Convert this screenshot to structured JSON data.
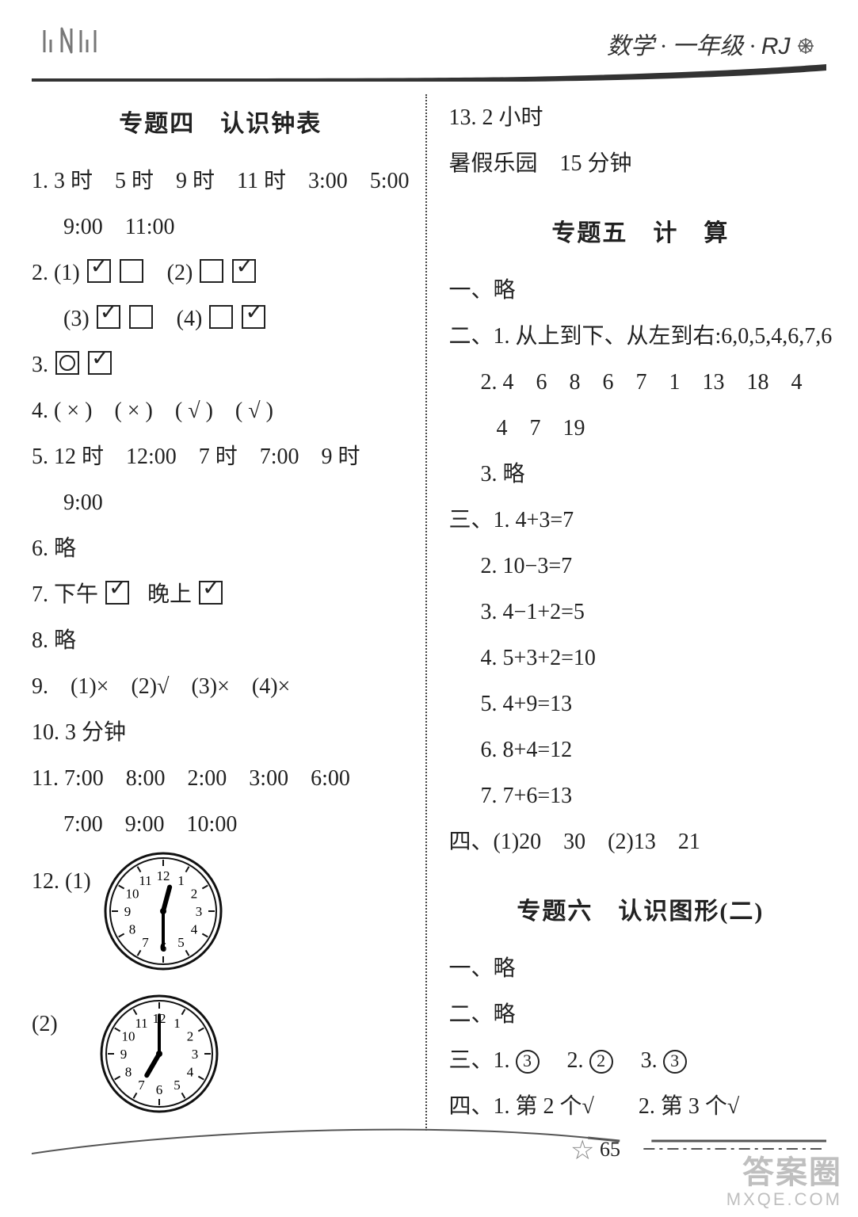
{
  "header": {
    "left_logo": "",
    "right": "数学 · 一年级 · ",
    "rj": "RJ"
  },
  "left_col": {
    "title": "专题四　认识钟表",
    "q1_a": "1. 3 时　5 时　9 时　11 时　3:00　5:00",
    "q1_b": "9:00　11:00",
    "q2_1": "2. (1)",
    "q2_2": "(2)",
    "q2_3": "(3)",
    "q2_4": "(4)",
    "q3": "3.",
    "q4": "4. ( × )　( × )　( √ )　( √ )",
    "q5_a": "5. 12 时　12:00　7 时　7:00　9 时",
    "q5_b": "9:00",
    "q6": "6. 略",
    "q7_a": "7. 下午",
    "q7_b": "晚上",
    "q8": "8. 略",
    "q9": "9.　(1)×　(2)√　(3)×　(4)×",
    "q10": "10. 3 分钟",
    "q11_a": "11. 7:00　8:00　2:00　3:00　6:00",
    "q11_b": "7:00　9:00　10:00",
    "q12_1": "12. (1)",
    "q12_2": "(2)",
    "clocks": {
      "c1": {
        "hour": 12,
        "minute": 30
      },
      "c2": {
        "hour": 7,
        "minute": 0
      }
    }
  },
  "right_col": {
    "top1": "13. 2 小时",
    "top2": "暑假乐园　15 分钟",
    "title5": "专题五　计　算",
    "s5_1": "一、略",
    "s5_2a": "二、1. 从上到下、从左到右:6,0,5,4,6,7,6",
    "s5_2b": "2. 4　6　8　6　7　1　13　18　4",
    "s5_2c": "4　7　19",
    "s5_2d": "3. 略",
    "s5_3a": "三、1. 4+3=7",
    "s5_3b": "2. 10−3=7",
    "s5_3c": "3. 4−1+2=5",
    "s5_3d": "4. 5+3+2=10",
    "s5_3e": "5. 4+9=13",
    "s5_3f": "6. 8+4=12",
    "s5_3g": "7. 7+6=13",
    "s5_4": "四、(1)20　30　(2)13　21",
    "title6": "专题六　认识图形(二)",
    "s6_1": "一、略",
    "s6_2": "二、略",
    "s6_3_pre": "三、1.",
    "s6_3_c1": "3",
    "s6_3_mid1": "　2.",
    "s6_3_c2": "2",
    "s6_3_mid2": "　3.",
    "s6_3_c3": "3",
    "s6_4": "四、1. 第 2 个√　　2. 第 3 个√"
  },
  "footer": {
    "page_num": "65",
    "wm1": "答案圈",
    "wm2": "MXQE.COM"
  },
  "style": {
    "font_base": 28,
    "title_size": 30,
    "text_color": "#222222",
    "bg_color": "#ffffff",
    "divider_color": "#444444",
    "watermark_color": "#bfbfbf",
    "clock_diameter": 150
  }
}
